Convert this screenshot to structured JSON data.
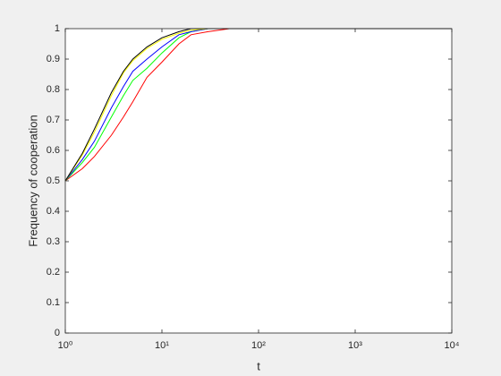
{
  "chart_data": {
    "type": "line",
    "xlabel": "t",
    "ylabel": "Frequency of cooperation",
    "x": [
      1,
      1.5,
      2,
      3,
      4,
      5,
      7,
      10,
      15,
      20,
      30,
      50,
      100,
      1000,
      10000
    ],
    "series": [
      {
        "color": "#ff0000",
        "values": [
          0.5,
          0.54,
          0.58,
          0.65,
          0.71,
          0.76,
          0.84,
          0.89,
          0.95,
          0.98,
          0.99,
          1,
          1,
          1,
          1
        ]
      },
      {
        "color": "#00ff00",
        "values": [
          0.5,
          0.56,
          0.61,
          0.71,
          0.78,
          0.83,
          0.87,
          0.92,
          0.97,
          0.99,
          1,
          1,
          1,
          1,
          1
        ]
      },
      {
        "color": "#0000ff",
        "values": [
          0.5,
          0.57,
          0.63,
          0.74,
          0.81,
          0.86,
          0.9,
          0.94,
          0.98,
          0.99,
          1,
          1,
          1,
          1,
          1
        ]
      },
      {
        "color": "#ffff00",
        "values": [
          0.5,
          0.585,
          0.66,
          0.78,
          0.855,
          0.895,
          0.935,
          0.965,
          0.985,
          0.995,
          1,
          1,
          1,
          1,
          1
        ]
      },
      {
        "color": "#000000",
        "values": [
          0.5,
          0.59,
          0.67,
          0.79,
          0.86,
          0.9,
          0.94,
          0.97,
          0.99,
          1,
          1,
          1,
          1,
          1,
          1
        ]
      }
    ],
    "xlog": true,
    "xlim": [
      1,
      10000
    ],
    "xticks": [
      {
        "value": 1,
        "label": "10⁰"
      },
      {
        "value": 10,
        "label": "10¹"
      },
      {
        "value": 100,
        "label": "10²"
      },
      {
        "value": 1000,
        "label": "10³"
      },
      {
        "value": 10000,
        "label": "10⁴"
      }
    ],
    "ylim": [
      0,
      1
    ],
    "yticks": [
      0,
      0.1,
      0.2,
      0.3,
      0.4,
      0.5,
      0.6,
      0.7,
      0.8,
      0.9,
      1
    ],
    "grid": false
  }
}
